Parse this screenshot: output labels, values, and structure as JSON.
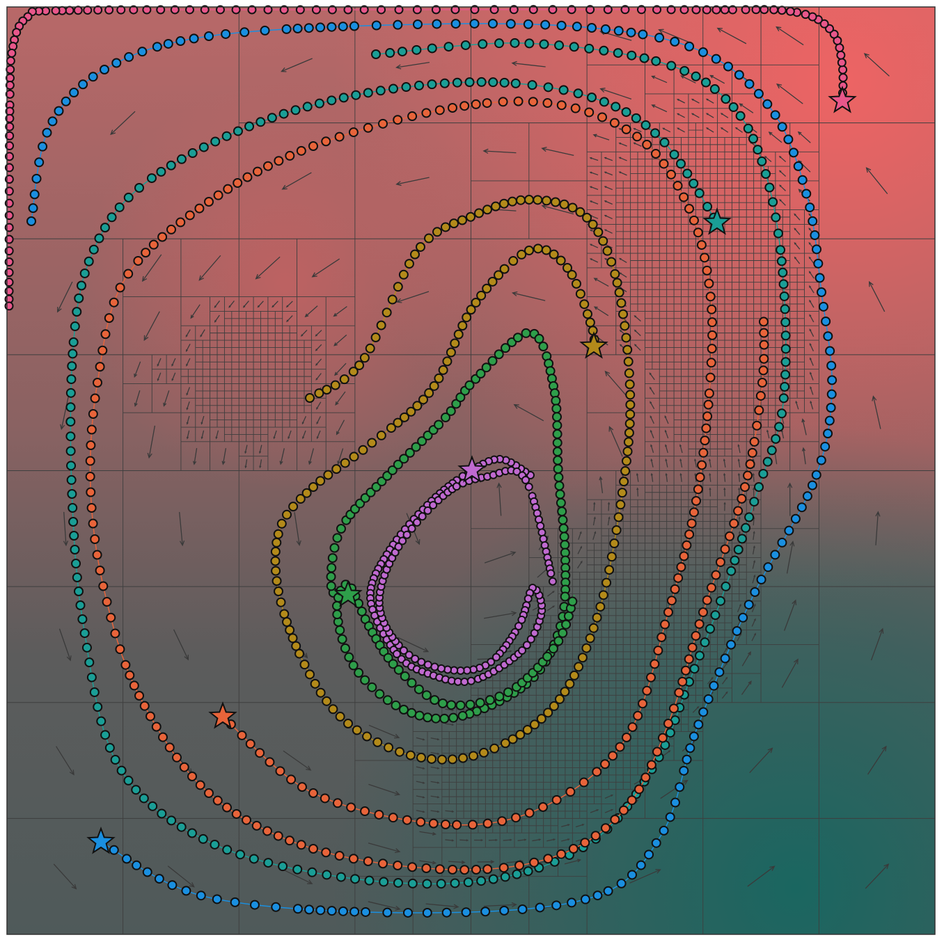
{
  "trajectories": [
    {
      "color": "#e8578b"
    },
    {
      "color": "#1a8fe0"
    },
    {
      "color": "#1a9e96"
    },
    {
      "color": "#e8643a"
    },
    {
      "color": "#b38a1a"
    },
    {
      "color": "#2e9e4a"
    },
    {
      "color": "#c06ad0"
    }
  ]
}
